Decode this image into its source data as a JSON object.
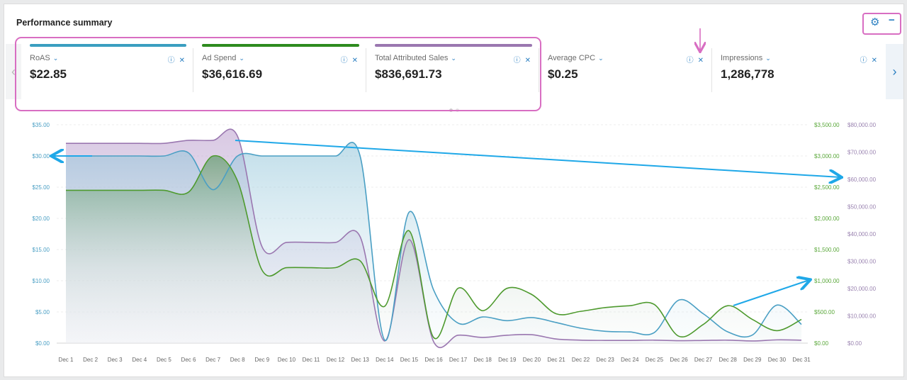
{
  "header": {
    "title": "Performance summary",
    "settings_icon": "gear-icon",
    "collapse_icon": "minus-icon"
  },
  "kpis": [
    {
      "label": "RoAS",
      "value": "$22.85",
      "color": "#3a9ec0"
    },
    {
      "label": "Ad Spend",
      "value": "$36,616.69",
      "color": "#2e8b1e"
    },
    {
      "label": "Total Attributed Sales",
      "value": "$836,691.73",
      "color": "#9a77b0"
    },
    {
      "label": "Average CPC",
      "value": "$0.25",
      "color": ""
    },
    {
      "label": "Impressions",
      "value": "1,286,778",
      "color": ""
    }
  ],
  "chart_data": {
    "type": "area",
    "categories": [
      "Dec 1",
      "Dec 2",
      "Dec 3",
      "Dec 4",
      "Dec 5",
      "Dec 6",
      "Dec 7",
      "Dec 8",
      "Dec 9",
      "Dec 10",
      "Dec 11",
      "Dec 12",
      "Dec 13",
      "Dec 14",
      "Dec 15",
      "Dec 16",
      "Dec 17",
      "Dec 18",
      "Dec 19",
      "Dec 20",
      "Dec 21",
      "Dec 22",
      "Dec 23",
      "Dec 24",
      "Dec 25",
      "Dec 26",
      "Dec 27",
      "Dec 28",
      "Dec 29",
      "Dec 30",
      "Dec 31"
    ],
    "grid": true,
    "axes": {
      "left": {
        "ylim": [
          0,
          35
        ],
        "ticks": [
          "$0.00",
          "$5.00",
          "$10.00",
          "$15.00",
          "$20.00",
          "$25.00",
          "$30.00",
          "$35.00"
        ],
        "color": "#4a9fc4"
      },
      "right1": {
        "ylim": [
          0,
          3500
        ],
        "ticks": [
          "$0.00",
          "$500.00",
          "$1,000.00",
          "$1,500.00",
          "$2,000.00",
          "$2,500.00",
          "$3,000.00",
          "$3,500.00"
        ],
        "color": "#5aa83a"
      },
      "right2": {
        "ylim": [
          0,
          80000
        ],
        "ticks": [
          "$0.00",
          "$10,000.00",
          "$20,000.00",
          "$30,000.00",
          "$40,000.00",
          "$50,000.00",
          "$60,000.00",
          "$70,000.00",
          "$80,000.00"
        ],
        "color": "#9a83b0"
      }
    },
    "series": [
      {
        "name": "Total Attributed Sales",
        "axis": "right2",
        "color": "#9a77b0",
        "values": [
          73200,
          73200,
          73200,
          73200,
          73200,
          74300,
          74300,
          75800,
          35300,
          36900,
          36900,
          36900,
          39000,
          800,
          37900,
          500,
          2900,
          2100,
          2900,
          3100,
          1500,
          1100,
          1000,
          1000,
          1100,
          900,
          1000,
          1100,
          800,
          1200,
          1100
        ]
      },
      {
        "name": "RoAS",
        "axis": "left",
        "color": "#4a9fc4",
        "values": [
          30,
          30,
          30,
          30,
          30,
          30.5,
          24.6,
          30,
          30,
          30,
          30,
          30,
          30,
          0.5,
          21,
          8.5,
          3.2,
          4.2,
          3.6,
          4.1,
          3.3,
          2.4,
          1.9,
          1.8,
          1.7,
          6.9,
          4.7,
          1.8,
          1.3,
          6.1,
          3.0
        ]
      },
      {
        "name": "Ad Spend",
        "axis": "right1",
        "color": "#4e9a2e",
        "values": [
          2450,
          2450,
          2450,
          2450,
          2450,
          2420,
          3000,
          2600,
          1170,
          1210,
          1210,
          1210,
          1320,
          590,
          1800,
          90,
          880,
          520,
          880,
          780,
          470,
          510,
          570,
          600,
          620,
          110,
          300,
          600,
          380,
          200,
          380
        ]
      }
    ]
  }
}
